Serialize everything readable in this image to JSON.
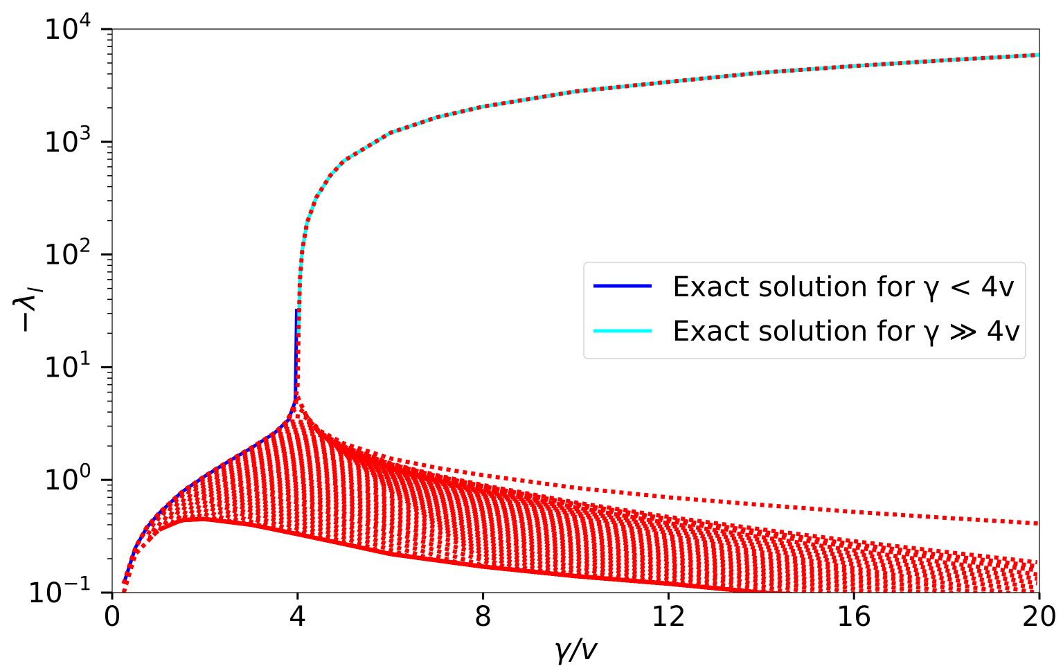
{
  "chart_data": {
    "type": "line",
    "xlabel": "γ/v",
    "ylabel": "−λ",
    "ylabel_sub": "l",
    "xlim": [
      0,
      20
    ],
    "ylim": [
      0.1,
      10000
    ],
    "yscale": "log",
    "xticks": [
      0,
      4,
      8,
      12,
      16,
      20
    ],
    "xtick_labels": [
      "0",
      "4",
      "8",
      "12",
      "16",
      "20"
    ],
    "yticks": [
      0.1,
      1,
      10,
      100,
      1000,
      10000
    ],
    "ytick_labels": [
      {
        "base": "10",
        "exp": "−1"
      },
      {
        "base": "10",
        "exp": "0"
      },
      {
        "base": "10",
        "exp": "1"
      },
      {
        "base": "10",
        "exp": "2"
      },
      {
        "base": "10",
        "exp": "3"
      },
      {
        "base": "10",
        "exp": "4"
      }
    ],
    "grid": false,
    "legend": {
      "placement": "center-right",
      "entries": [
        {
          "label": "Exact solution for γ < 4v",
          "color": "#0000ff"
        },
        {
          "label": "Exact solution for γ ≫ 4v",
          "color": "#00ffff"
        }
      ]
    },
    "series": [
      {
        "name": "Exact solution for γ < 4v",
        "color": "#0000ff",
        "style": "solid",
        "x": [
          0.25,
          0.5,
          0.75,
          1.0,
          1.5,
          2.0,
          2.5,
          3.0,
          3.5,
          3.8,
          3.95,
          3.98
        ],
        "y": [
          0.12,
          0.25,
          0.38,
          0.5,
          0.78,
          1.08,
          1.45,
          1.92,
          2.6,
          3.4,
          5.0,
          33
        ]
      },
      {
        "name": "Exact solution for γ ≫ 4v",
        "color": "#00ffff",
        "style": "solid",
        "x": [
          4.02,
          4.05,
          4.1,
          4.2,
          4.4,
          4.7,
          5,
          6,
          7,
          8,
          10,
          12,
          14,
          16,
          18,
          20
        ],
        "y": [
          20,
          60,
          110,
          190,
          320,
          500,
          680,
          1200,
          1650,
          2050,
          2800,
          3400,
          4100,
          4700,
          5300,
          5900
        ]
      },
      {
        "color": "#ff0000",
        "style": "dotted",
        "x": [
          0.25,
          0.5,
          0.75,
          1.0,
          1.5,
          2.0,
          2.5,
          3.0,
          3.5,
          3.8,
          3.95,
          4.0,
          4.02,
          4.05,
          4.1,
          4.2,
          4.4,
          4.7,
          5,
          6,
          7,
          8,
          10,
          12,
          14,
          16,
          18,
          20
        ],
        "y": [
          0.12,
          0.25,
          0.38,
          0.5,
          0.78,
          1.08,
          1.45,
          1.92,
          2.6,
          3.4,
          5.0,
          7,
          20,
          60,
          110,
          190,
          320,
          500,
          680,
          1200,
          1650,
          2050,
          2800,
          3400,
          4100,
          4700,
          5300,
          5900
        ]
      },
      {
        "color": "#ff0000",
        "style": "dotted",
        "x": [
          4.0,
          4.2,
          4.5,
          5,
          6,
          7,
          8,
          10,
          12,
          14,
          16,
          18,
          20
        ],
        "y": [
          5.5,
          3.6,
          2.7,
          2.1,
          1.55,
          1.28,
          1.1,
          0.85,
          0.7,
          0.6,
          0.52,
          0.46,
          0.41
        ]
      },
      {
        "color": "#ff0000",
        "style": "dotted",
        "x": [
          0.25,
          0.5,
          1.0,
          1.5,
          2.0,
          3.0,
          4.0,
          5,
          6,
          8,
          10,
          12,
          14,
          16,
          18,
          20
        ],
        "y": [
          0.1,
          0.22,
          0.36,
          0.44,
          0.45,
          0.4,
          0.33,
          0.27,
          0.22,
          0.17,
          0.14,
          0.12,
          0.1,
          0.09,
          0.08,
          0.07
        ]
      }
    ]
  }
}
